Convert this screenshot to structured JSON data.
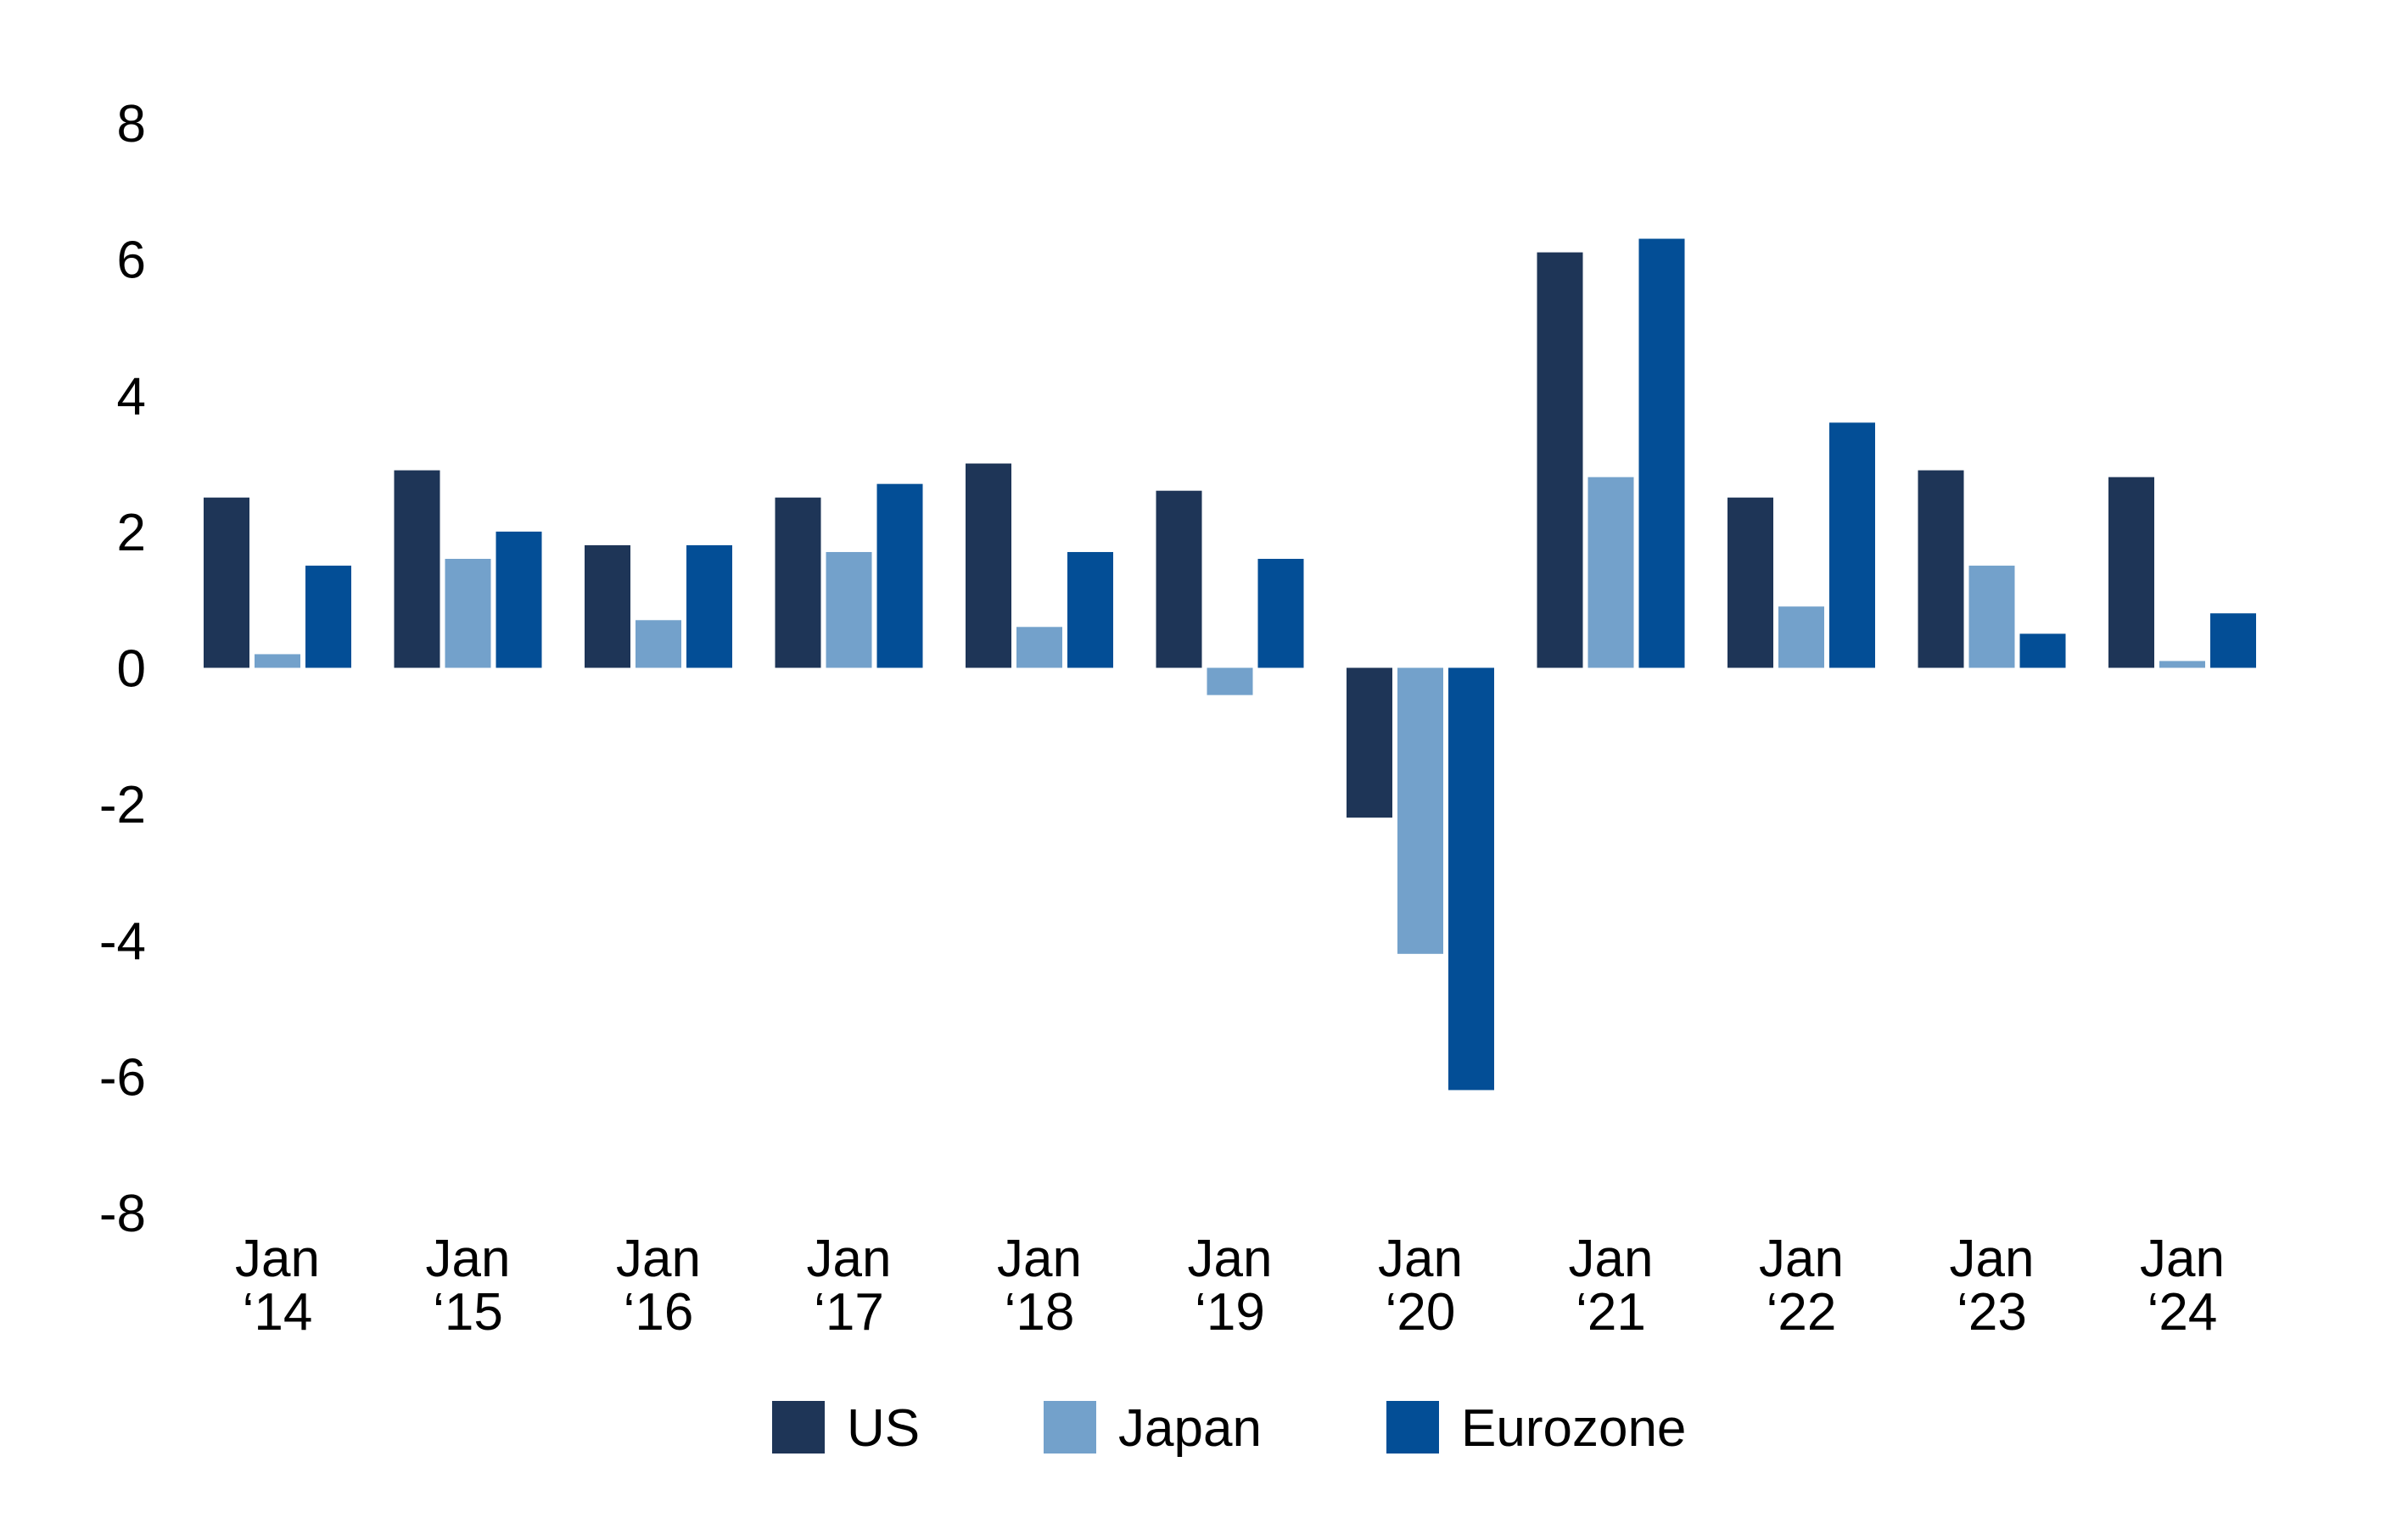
{
  "chart_data": {
    "type": "bar",
    "title": "",
    "xlabel": "",
    "ylabel": "",
    "ylim": [
      -8,
      8
    ],
    "yticks": [
      8,
      6,
      4,
      2,
      0,
      -2,
      -4,
      -6,
      -8
    ],
    "grid": false,
    "legend_position": "bottom-center",
    "categories": [
      [
        "Jan",
        "‘14"
      ],
      [
        "Jan",
        "‘15"
      ],
      [
        "Jan",
        "‘16"
      ],
      [
        "Jan",
        "‘17"
      ],
      [
        "Jan",
        "‘18"
      ],
      [
        "Jan",
        "‘19"
      ],
      [
        "Jan",
        "‘20"
      ],
      [
        "Jan",
        "‘21"
      ],
      [
        "Jan",
        "‘22"
      ],
      [
        "Jan",
        "‘23"
      ],
      [
        "Jan",
        "‘24"
      ]
    ],
    "series": [
      {
        "name": "US",
        "color": "#1E3557",
        "values": [
          2.5,
          2.9,
          1.8,
          2.5,
          3.0,
          2.6,
          -2.2,
          6.1,
          2.5,
          2.9,
          2.8
        ]
      },
      {
        "name": "Japan",
        "color": "#73A1CB",
        "values": [
          0.2,
          1.6,
          0.7,
          1.7,
          0.6,
          -0.4,
          -4.2,
          2.8,
          0.9,
          1.5,
          0.1
        ]
      },
      {
        "name": "Eurozone",
        "color": "#034E96",
        "values": [
          1.5,
          2.0,
          1.8,
          2.7,
          1.7,
          1.6,
          -6.2,
          6.3,
          3.6,
          0.5,
          0.8
        ]
      }
    ]
  }
}
